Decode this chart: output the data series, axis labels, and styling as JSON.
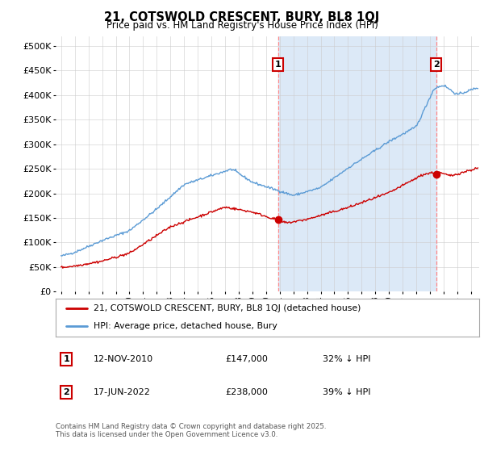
{
  "title": "21, COTSWOLD CRESCENT, BURY, BL8 1QJ",
  "subtitle": "Price paid vs. HM Land Registry's House Price Index (HPI)",
  "ylabel_ticks": [
    "£0",
    "£50K",
    "£100K",
    "£150K",
    "£200K",
    "£250K",
    "£300K",
    "£350K",
    "£400K",
    "£450K",
    "£500K"
  ],
  "ytick_values": [
    0,
    50000,
    100000,
    150000,
    200000,
    250000,
    300000,
    350000,
    400000,
    450000,
    500000
  ],
  "ylim": [
    0,
    520000
  ],
  "hpi_color": "#5b9bd5",
  "price_color": "#cc0000",
  "sale1_x": 2010.87,
  "sale2_x": 2022.46,
  "sale1_price": 147000,
  "sale2_price": 238000,
  "sale1_date": "12-NOV-2010",
  "sale2_date": "17-JUN-2022",
  "sale1_hpi_pct": "32% ↓ HPI",
  "sale2_hpi_pct": "39% ↓ HPI",
  "legend_label1": "21, COTSWOLD CRESCENT, BURY, BL8 1QJ (detached house)",
  "legend_label2": "HPI: Average price, detached house, Bury",
  "footnote": "Contains HM Land Registry data © Crown copyright and database right 2025.\nThis data is licensed under the Open Government Licence v3.0.",
  "bg_color": "#ffffff",
  "plot_bg_color": "#ffffff",
  "shade_color": "#dce9f7",
  "grid_color": "#cccccc",
  "dashed_color": "#ff8888",
  "xlim_left": 1994.6,
  "xlim_right": 2025.6
}
